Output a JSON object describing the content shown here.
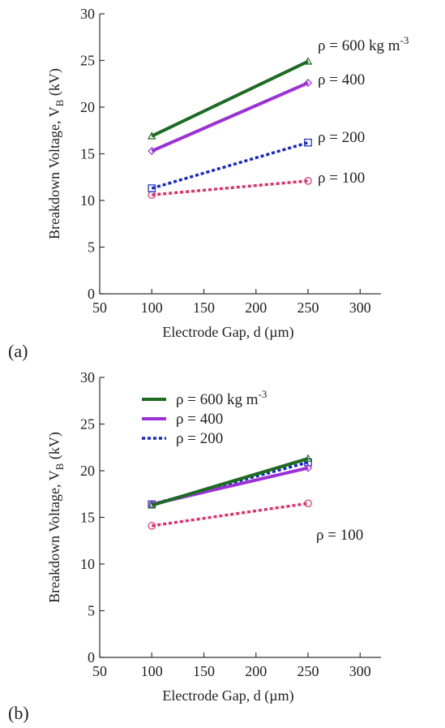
{
  "chart_data": [
    {
      "type": "line",
      "panel_label": "(a)",
      "xlabel": "Electrode Gap, d (µm)",
      "ylabel": "Breakdown Voltage, V",
      "ylabel_sub": "B",
      "ylabel_unit": " (kV)",
      "xlim": [
        50,
        320
      ],
      "ylim": [
        0,
        30
      ],
      "xticks": [
        50,
        100,
        150,
        200,
        250,
        300
      ],
      "yticks": [
        0,
        5,
        10,
        15,
        20,
        25,
        30
      ],
      "grid": false,
      "legend": "inline-right",
      "series": [
        {
          "name": "ρ = 600 kg m",
          "name_sup": "-3",
          "x": [
            100,
            250
          ],
          "y": [
            16.9,
            24.9
          ],
          "color": "#1e6b23",
          "style": "solid",
          "marker": "triangle"
        },
        {
          "name": "ρ = 400",
          "x": [
            100,
            250
          ],
          "y": [
            15.3,
            22.6
          ],
          "color": "#9b30d9",
          "style": "solid",
          "marker": "diamond"
        },
        {
          "name": "ρ = 200",
          "x": [
            100,
            250
          ],
          "y": [
            11.3,
            16.2
          ],
          "color": "#1526c9",
          "style": "dotted",
          "marker": "square"
        },
        {
          "name": "ρ = 100",
          "x": [
            100,
            250
          ],
          "y": [
            10.6,
            12.1
          ],
          "color": "#e0306a",
          "style": "dotted",
          "marker": "circle"
        }
      ]
    },
    {
      "type": "line",
      "panel_label": "(b)",
      "xlabel": "Electrode Gap, d (µm)",
      "ylabel": "Breakdown Voltage, V",
      "ylabel_sub": "B",
      "ylabel_unit": " (kV)",
      "xlim": [
        50,
        320
      ],
      "ylim": [
        0,
        30
      ],
      "xticks": [
        50,
        100,
        150,
        200,
        250,
        300
      ],
      "yticks": [
        0,
        5,
        10,
        15,
        20,
        25,
        30
      ],
      "grid": false,
      "legend": "top-left",
      "series": [
        {
          "name": "ρ = 600 kg m",
          "name_sup": "-3",
          "x": [
            100,
            250
          ],
          "y": [
            16.3,
            21.3
          ],
          "color": "#1e6b23",
          "style": "solid",
          "marker": "triangle"
        },
        {
          "name": "ρ = 400",
          "x": [
            100,
            250
          ],
          "y": [
            16.4,
            20.3
          ],
          "color": "#9b30d9",
          "style": "solid",
          "marker": "diamond"
        },
        {
          "name": "ρ = 200",
          "x": [
            100,
            250
          ],
          "y": [
            16.4,
            20.9
          ],
          "color": "#1526c9",
          "style": "dotted",
          "marker": "square"
        },
        {
          "name": "ρ = 100",
          "x": [
            100,
            250
          ],
          "y": [
            14.1,
            16.5
          ],
          "color": "#e0306a",
          "style": "dotted",
          "marker": "circle"
        }
      ]
    }
  ]
}
